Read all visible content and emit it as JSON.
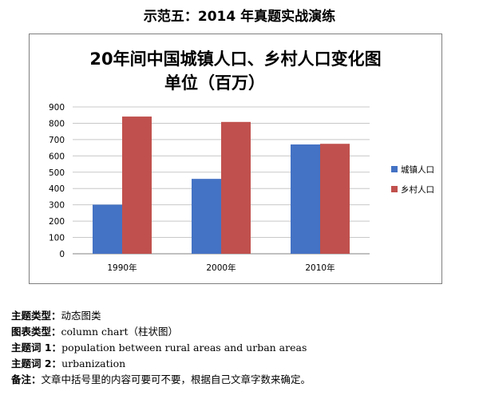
{
  "heading": "示范五：2014 年真题实战演练",
  "chart_data": {
    "type": "bar",
    "title": "20年间中国城镇人口、乡村人口变化图",
    "subtitle": "单位（百万）",
    "categories": [
      "1990年",
      "2000年",
      "2010年"
    ],
    "series": [
      {
        "name": "城镇人口",
        "values": [
          301,
          459,
          670
        ],
        "color": "#4472C4"
      },
      {
        "name": "乡村人口",
        "values": [
          841,
          808,
          674
        ],
        "color": "#C0504D"
      }
    ],
    "ylim": [
      0,
      900
    ],
    "yticks": [
      "0",
      "100",
      "200",
      "300",
      "400",
      "500",
      "600",
      "700",
      "800",
      "900"
    ],
    "xlabel": "",
    "ylabel": "",
    "grid": true,
    "legend": "right"
  },
  "notes": [
    {
      "key": "主题类型：",
      "value": "动态图类"
    },
    {
      "key": "图表类型：",
      "value": "column chart（柱状图）"
    },
    {
      "key": "主题词 1：",
      "value": "population between rural areas and urban areas"
    },
    {
      "key": "主题词 2：",
      "value": "urbanization"
    },
    {
      "key": "备注：",
      "value": "文章中括号里的内容可要可不要，根据自己文章字数来确定。"
    }
  ]
}
